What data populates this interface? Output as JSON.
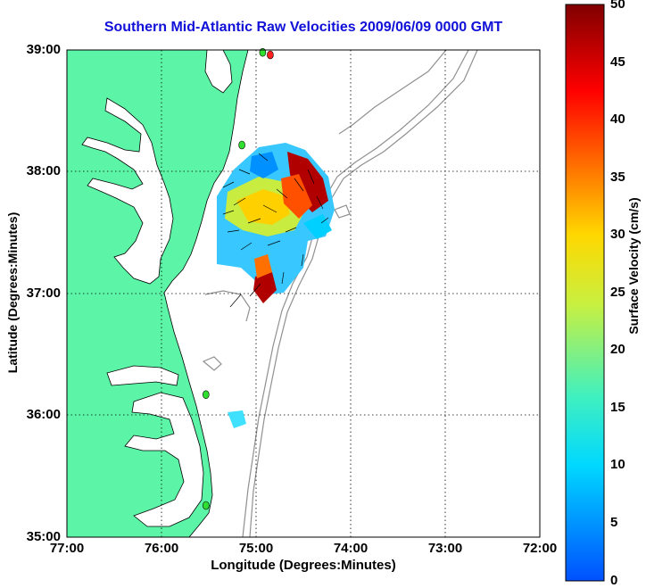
{
  "title": "Southern Mid-Atlantic Raw Velocities 2009/06/09 0000 GMT",
  "x_axis": {
    "label": "Longitude (Degrees:Minutes)",
    "ticks": [
      "77:00",
      "76:00",
      "75:00",
      "74:00",
      "73:00",
      "72:00"
    ]
  },
  "y_axis": {
    "label": "Latitude (Degrees:Minutes)",
    "ticks": [
      "39:00",
      "38:00",
      "37:00",
      "36:00",
      "35:00"
    ]
  },
  "colorbar": {
    "label": "Surface Velocity (cm/s)",
    "ticks": [
      "50",
      "45",
      "40",
      "35",
      "30",
      "25",
      "20",
      "15",
      "10",
      "5",
      "0"
    ],
    "range_cm_s": [
      0,
      50
    ],
    "colors": [
      "#0040ff",
      "#00d8ff",
      "#40f0c0",
      "#d0f030",
      "#ffd000",
      "#ff6000",
      "#ff0000",
      "#800000"
    ]
  },
  "map": {
    "lon_range": [
      -77,
      -72
    ],
    "lat_range": [
      35,
      39
    ],
    "land_color": "#5cf5a8",
    "water_color": "#ffffff",
    "bathymetry_color": "#909090",
    "grid": "dotted"
  },
  "stations": [
    {
      "lon": -74.85,
      "lat": 38.96,
      "color": "#ff2020"
    },
    {
      "lon": -74.93,
      "lat": 38.98,
      "color": "#30e030"
    },
    {
      "lon": -75.15,
      "lat": 38.22,
      "color": "#30e030"
    },
    {
      "lon": -75.53,
      "lat": 36.17,
      "color": "#30e030"
    },
    {
      "lon": -75.53,
      "lat": 35.26,
      "color": "#30e030"
    }
  ]
}
